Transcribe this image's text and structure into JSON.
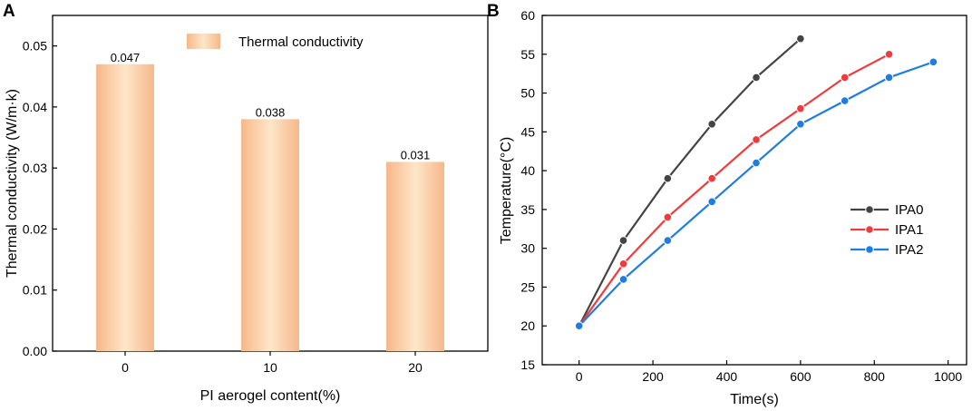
{
  "chart_data": [
    {
      "panel": "A",
      "type": "bar",
      "categories": [
        "0",
        "10",
        "20"
      ],
      "series": [
        {
          "name": "Thermal conductivity",
          "values": [
            0.047,
            0.038,
            0.031
          ]
        }
      ],
      "data_labels": [
        "0.047",
        "0.038",
        "0.031"
      ],
      "xlabel": "PI aerogel content(%)",
      "ylabel": "Thermal conductivity (W/m·k)",
      "ylim": [
        0,
        0.055
      ],
      "yticks": [
        "0.00",
        "0.01",
        "0.02",
        "0.03",
        "0.04",
        "0.05"
      ],
      "ytick_values": [
        0,
        0.01,
        0.02,
        0.03,
        0.04,
        0.05
      ],
      "legend_position": "top-right",
      "colors": {
        "bar_center": "#fde6c8",
        "bar_edge": "#f6b88a"
      }
    },
    {
      "panel": "B",
      "type": "line",
      "xlabel": "Time(s)",
      "ylabel": "Temperature(°C)",
      "xlim": [
        -100,
        1050
      ],
      "ylim": [
        15,
        60
      ],
      "xticks": [
        "0",
        "200",
        "400",
        "600",
        "800",
        "1000"
      ],
      "xtick_values": [
        0,
        200,
        400,
        600,
        800,
        1000
      ],
      "yticks": [
        "15",
        "20",
        "25",
        "30",
        "35",
        "40",
        "45",
        "50",
        "55",
        "60"
      ],
      "ytick_values": [
        15,
        20,
        25,
        30,
        35,
        40,
        45,
        50,
        55,
        60
      ],
      "legend_position": "right",
      "series": [
        {
          "name": "IPA0",
          "color": "#444444",
          "x": [
            0,
            120,
            240,
            360,
            480,
            600
          ],
          "y": [
            20,
            31,
            39,
            46,
            52,
            57
          ]
        },
        {
          "name": "IPA1",
          "color": "#ef3b3b",
          "x": [
            0,
            120,
            240,
            360,
            480,
            600,
            720,
            840
          ],
          "y": [
            20,
            28,
            34,
            39,
            44,
            48,
            52,
            55
          ]
        },
        {
          "name": "IPA2",
          "color": "#1f7de0",
          "x": [
            0,
            120,
            240,
            360,
            480,
            600,
            720,
            840,
            960
          ],
          "y": [
            20,
            26,
            31,
            36,
            41,
            46,
            49,
            52,
            54
          ]
        }
      ]
    }
  ],
  "panels": {
    "a": "A",
    "b": "B"
  }
}
